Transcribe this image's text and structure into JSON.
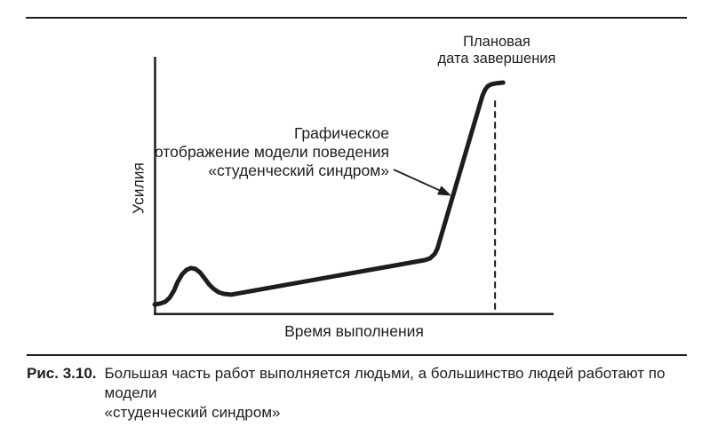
{
  "figure": {
    "planned_date_label": "Плановая\nдата завершения",
    "annotation_label": "Графическое\nотображение модели поведения\n«студенческий синдром»",
    "y_axis_label": "Усилия",
    "x_axis_label": "Время выполнения"
  },
  "caption": {
    "label": "Рис. 3.10.",
    "text": "Большая часть работ выполняется людьми, а большинство людей работают по модели\n«студенческий синдром»"
  },
  "colors": {
    "ink": "#1d1d1b",
    "background": "#ffffff"
  },
  "chart_data": {
    "type": "line",
    "title": "",
    "xlabel": "Время выполнения",
    "ylabel": "Усилия",
    "x_range": [
      0,
      100
    ],
    "y_range": [
      0,
      100
    ],
    "grid": false,
    "legend": false,
    "tick_labels": "none (qualitative sketch, no numeric ticks shown)",
    "series": [
      {
        "name": "Усилия (модель поведения «студенческий синдром»)",
        "points": [
          [
            0,
            3.9
          ],
          [
            1.4,
            4.3
          ],
          [
            2.8,
            5.0
          ],
          [
            4.0,
            6.8
          ],
          [
            5.1,
            9.6
          ],
          [
            6.0,
            12.9
          ],
          [
            7.2,
            16.1
          ],
          [
            8.4,
            17.9
          ],
          [
            9.5,
            18.6
          ],
          [
            10.7,
            18.2
          ],
          [
            11.9,
            16.8
          ],
          [
            13.0,
            14.6
          ],
          [
            14.2,
            12.1
          ],
          [
            15.3,
            10.4
          ],
          [
            16.7,
            8.9
          ],
          [
            18.1,
            8.2
          ],
          [
            20.0,
            7.9
          ],
          [
            70.7,
            21.8
          ],
          [
            72.1,
            22.5
          ],
          [
            73.3,
            24.3
          ],
          [
            74.0,
            26.4
          ],
          [
            85.8,
            87.9
          ],
          [
            86.5,
            90.4
          ],
          [
            87.2,
            91.8
          ],
          [
            88.1,
            92.5
          ],
          [
            89.3,
            92.9
          ],
          [
            91.2,
            93.2
          ]
        ]
      }
    ],
    "deadline_marker": {
      "style": "dashed-vertical-line",
      "x": 89.1,
      "y_top": 86,
      "label": "Плановая дата завершения"
    },
    "annotations": [
      {
        "text": "Графическое отображение модели поведения «студенческий синдром»",
        "arrow_points_to": {
          "x": 77.7,
          "y": 47.9
        }
      }
    ]
  }
}
